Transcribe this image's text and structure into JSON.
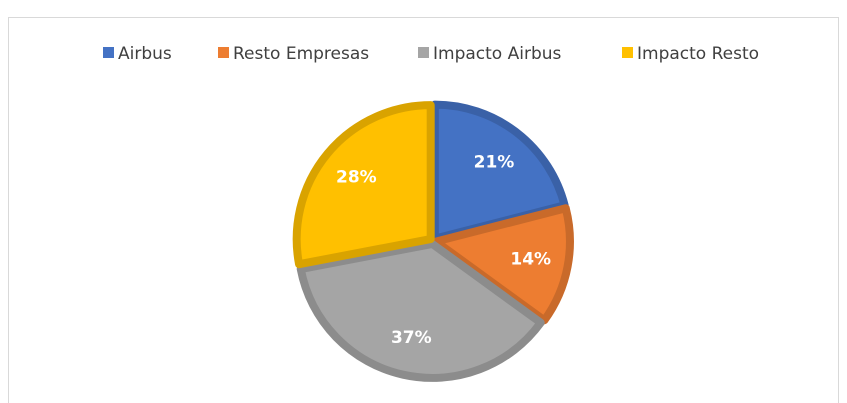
{
  "chart_data": {
    "type": "pie",
    "categories": [
      "Airbus",
      "Resto Empresas",
      "Impacto Airbus",
      "Impacto Resto"
    ],
    "values": [
      21,
      14,
      37,
      28
    ],
    "value_labels": [
      "21%",
      "14%",
      "37%",
      "28%"
    ],
    "colors": [
      "#4472c4",
      "#ed7d31",
      "#a5a5a5",
      "#ffc000"
    ],
    "legend": "top"
  }
}
